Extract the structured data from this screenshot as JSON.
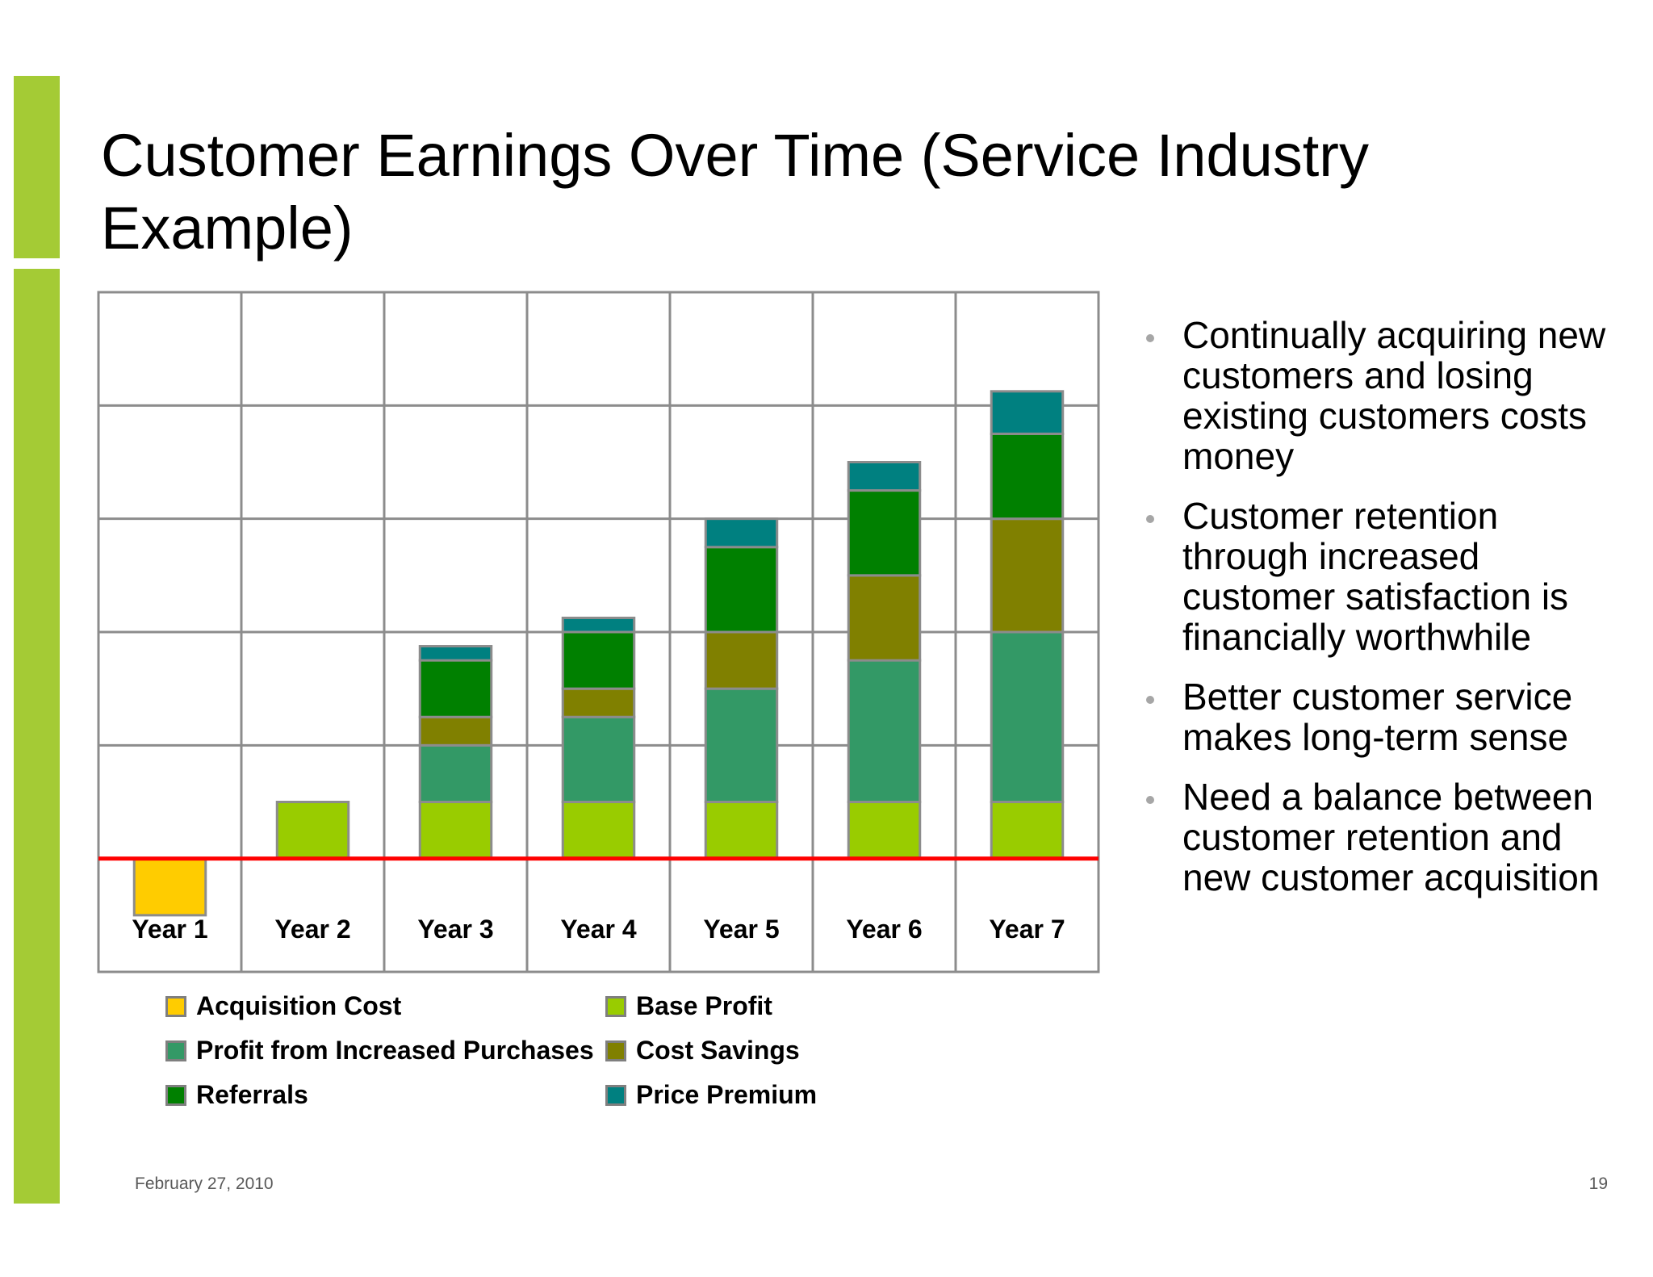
{
  "slide": {
    "title": "Customer Earnings Over Time (Service Industry Example)",
    "accent_color": "#a4cb35",
    "footer_date": "February 27, 2010",
    "page_number": "19"
  },
  "bullets": [
    "Continually acquiring new customers and losing existing customers costs money",
    "Customer retention through increased customer satisfaction is financially worthwhile",
    "Better customer service makes long-term sense",
    "Need a balance between customer retention and new customer acquisition"
  ],
  "chart_data": {
    "type": "bar",
    "stacked": true,
    "categories": [
      "Year 1",
      "Year 2",
      "Year 3",
      "Year 4",
      "Year 5",
      "Year 6",
      "Year 7"
    ],
    "series": [
      {
        "name": "Acquisition Cost",
        "color": "#ffcc00",
        "values": [
          -1.0,
          0,
          0,
          0,
          0,
          0,
          0
        ]
      },
      {
        "name": "Base Profit",
        "color": "#99cc00",
        "values": [
          0,
          1.0,
          1.0,
          1.0,
          1.0,
          1.0,
          1.0
        ]
      },
      {
        "name": "Profit from Increased Purchases",
        "color": "#339966",
        "values": [
          0,
          0,
          1.0,
          1.5,
          2.0,
          2.5,
          3.0
        ]
      },
      {
        "name": "Cost Savings",
        "color": "#808000",
        "values": [
          0,
          0,
          0.5,
          0.5,
          1.0,
          1.5,
          2.0
        ]
      },
      {
        "name": "Referrals",
        "color": "#008000",
        "values": [
          0,
          0,
          1.0,
          1.0,
          1.5,
          1.5,
          1.5
        ]
      },
      {
        "name": "Price Premium",
        "color": "#008080",
        "values": [
          0,
          0,
          0.25,
          0.25,
          0.5,
          0.5,
          0.75
        ]
      }
    ],
    "ylim": [
      -2,
      10
    ],
    "grid": true,
    "legend": "bottom",
    "baseline_color": "#ff0000",
    "grid_color": "#8c8c8c",
    "bar_border_color": "#8c8c8c"
  }
}
